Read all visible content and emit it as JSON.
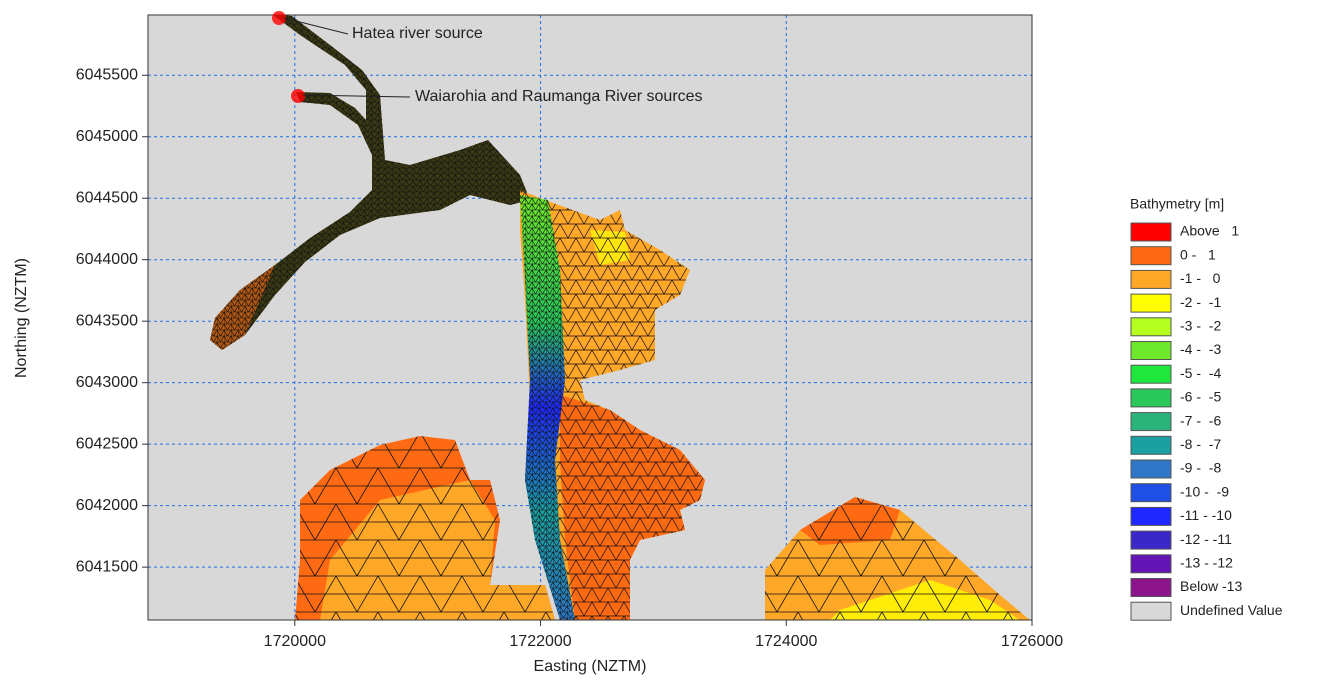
{
  "chart_data": {
    "type": "map",
    "xlabel": "Easting (NZTM)",
    "ylabel": "Northing (NZTM)",
    "xlim": [
      1718805,
      1726000
    ],
    "ylim": [
      6041070,
      6045990
    ],
    "xticks": [
      1720000,
      1722000,
      1724000,
      1726000
    ],
    "yticks": [
      6041500,
      6042000,
      6042500,
      6043000,
      6043500,
      6044000,
      6044500,
      6045000,
      6045500
    ],
    "grid": true,
    "grid_color": "#1e6fe6",
    "annotations": [
      "Hatea river source",
      "Waiarohia and Raumanga River sources"
    ],
    "legend": {
      "title": "Bathymetry [m]",
      "items": [
        {
          "label": "Above   1",
          "color": "#ff0000"
        },
        {
          "label": "0 -   1",
          "color": "#ff6a13"
        },
        {
          "label": "-1 -   0",
          "color": "#ffa726"
        },
        {
          "label": "-2 -  -1",
          "color": "#ffff00"
        },
        {
          "label": "-3 -  -2",
          "color": "#b4ff1e"
        },
        {
          "label": "-4 -  -3",
          "color": "#6ee82a"
        },
        {
          "label": "-5 -  -4",
          "color": "#1ee83c"
        },
        {
          "label": "-6 -  -5",
          "color": "#28c85a"
        },
        {
          "label": "-7 -  -6",
          "color": "#2ab47a"
        },
        {
          "label": "-8 -  -7",
          "color": "#1aa0a0"
        },
        {
          "label": "-9 -  -8",
          "color": "#2f78c8"
        },
        {
          "label": "-10 -  -9",
          "color": "#1e50e6"
        },
        {
          "label": "-11 - -10",
          "color": "#1e28ff"
        },
        {
          "label": "-12 - -11",
          "color": "#3c28c8"
        },
        {
          "label": "-13 - -12",
          "color": "#6414b4"
        },
        {
          "label": "Below -13",
          "color": "#8c148c"
        },
        {
          "label": "Undefined Value",
          "color": "#d8d8d8"
        }
      ]
    }
  }
}
